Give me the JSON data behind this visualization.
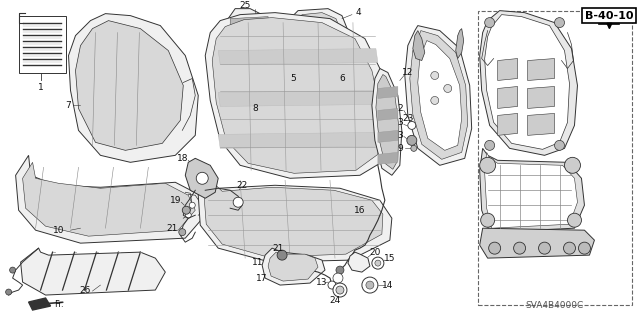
{
  "bg_color": "#ffffff",
  "page_ref": "B-40-10",
  "diagram_code": "SVA4B4000C",
  "fig_width": 6.4,
  "fig_height": 3.19,
  "dpi": 100,
  "line_color": "#333333",
  "fill_color": "#f0f0f0",
  "fill_dark": "#d8d8d8",
  "label_fontsize": 6.5,
  "label_color": "#111111"
}
